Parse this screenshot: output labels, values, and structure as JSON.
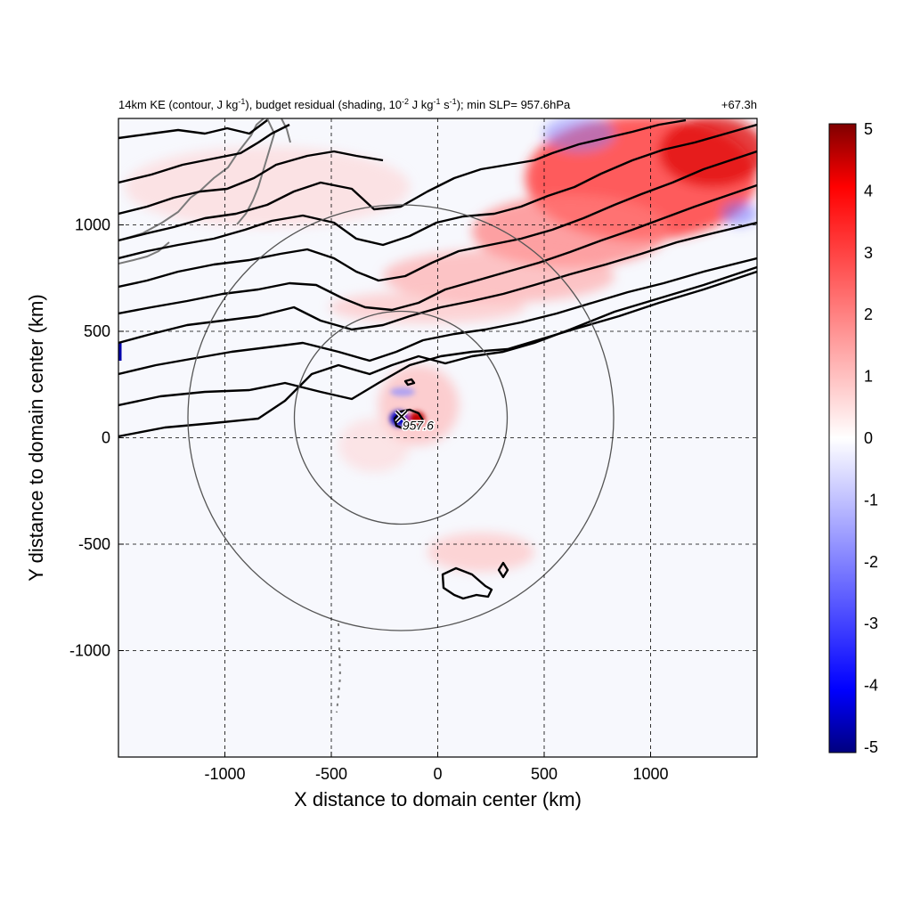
{
  "title": {
    "main_prefix": "14km KE (contour, J kg",
    "main_mid": "), budget residual (shading, 10",
    "main_mid2": " J kg",
    "main_end": "); min SLP= 957.6hPa",
    "sup_neg1": "-1",
    "sup_neg2": "-2",
    "sup_s": "-1",
    "s_unit": " s",
    "time_label": "+67.3h"
  },
  "chart_data": {
    "type": "heatmap",
    "xlabel": "X distance to domain center (km)",
    "ylabel": "Y distance to domain center (km)",
    "xlim": [
      -1500,
      1500
    ],
    "ylim": [
      -1500,
      1500
    ],
    "x_ticks": [
      -1000,
      -500,
      0,
      500,
      1000
    ],
    "y_ticks": [
      -1000,
      -500,
      0,
      500,
      1000
    ],
    "x_tick_labels": [
      "-1000",
      "-500",
      "0",
      "500",
      "1000"
    ],
    "y_tick_labels": [
      "-1000",
      "-500",
      "0",
      "500",
      "1000"
    ],
    "grid": true,
    "grid_style": "dashed",
    "colorbar": {
      "min": -5,
      "max": 5,
      "ticks": [
        5,
        4,
        3,
        2,
        1,
        0,
        -1,
        -2,
        -3,
        -4,
        -5
      ],
      "tick_labels": [
        "5",
        "4",
        "3",
        "2",
        "1",
        "0",
        "-1",
        "-2",
        "-3",
        "-4",
        "-5"
      ],
      "colormap": "blue-white-red"
    },
    "storm_center": {
      "x": -170,
      "y": 100,
      "marker": "X",
      "label": "957.6"
    },
    "range_rings_km": [
      500,
      1000
    ],
    "colors": {
      "positive_max": "#7f0000",
      "positive": "#ff2020",
      "neutral": "#ffffff",
      "negative": "#2020ff",
      "negative_max": "#00007f",
      "contour": "#000000",
      "ring": "#555555",
      "coast": "#7a7a7a"
    }
  }
}
